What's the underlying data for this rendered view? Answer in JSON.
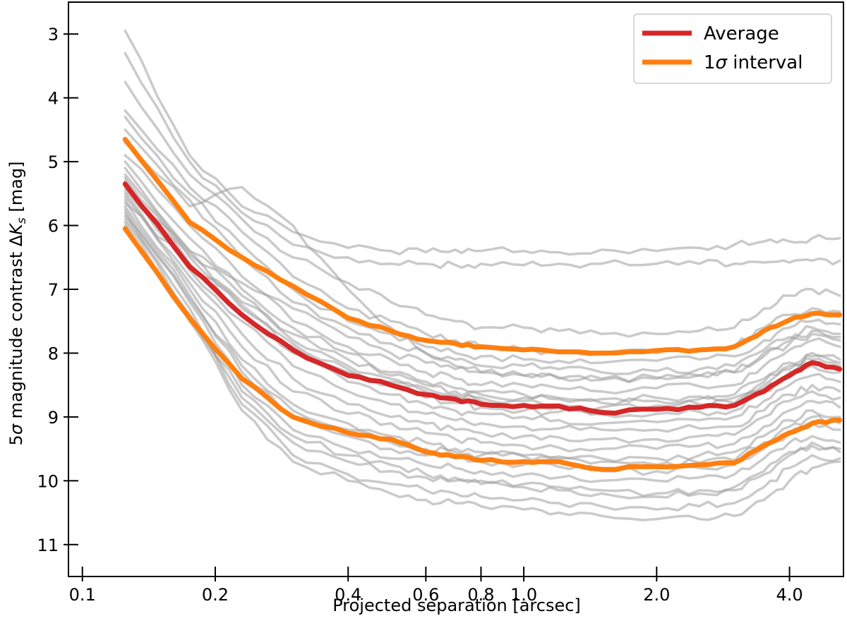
{
  "chart_data": {
    "type": "line",
    "xscale": "log",
    "xlim": [
      0.093,
      5.3
    ],
    "ylim": [
      11.5,
      2.5
    ],
    "y_inverted": true,
    "xlabel": "Projected separation [arcsec]",
    "ylabel_parts": [
      "5",
      "σ",
      " magnitude contrast Δ",
      "K",
      "s",
      " [mag]"
    ],
    "xticks": [
      0.1,
      0.2,
      0.4,
      0.6,
      0.8,
      1.0,
      2.0,
      4.0
    ],
    "xtick_labels": [
      "0.1",
      "0.2",
      "0.4",
      "0.6",
      "0.8",
      "1.0",
      "2.0",
      "4.0"
    ],
    "yticks": [
      3,
      4,
      5,
      6,
      7,
      8,
      9,
      10,
      11
    ],
    "ytick_labels": [
      "3",
      "4",
      "5",
      "6",
      "7",
      "8",
      "9",
      "10",
      "11"
    ],
    "legend": {
      "placement": "top-right",
      "entries": [
        {
          "label": "Average",
          "color": "#d62728"
        },
        {
          "label_parts": [
            "1",
            "σ",
            " interval"
          ],
          "color": "#ff7f0e"
        }
      ]
    },
    "colors": {
      "individual": "#9e9e9e",
      "average": "#d62728",
      "interval": "#ff7f0e"
    },
    "x_grid": [
      0.125,
      0.175,
      0.23,
      0.3,
      0.4,
      0.5,
      0.6,
      0.7,
      0.8,
      1.0,
      1.2,
      1.5,
      2.0,
      2.5,
      3.0,
      3.5,
      4.0,
      4.5,
      5.2
    ],
    "series": [
      {
        "name": "Average",
        "role": "average",
        "values": [
          5.35,
          6.65,
          7.4,
          7.95,
          8.35,
          8.5,
          8.65,
          8.72,
          8.8,
          8.82,
          8.83,
          8.93,
          8.88,
          8.85,
          8.82,
          8.6,
          8.35,
          8.15,
          8.25
        ]
      },
      {
        "name": "1σ upper",
        "role": "interval",
        "values": [
          4.65,
          5.95,
          6.5,
          6.95,
          7.45,
          7.65,
          7.8,
          7.85,
          7.9,
          7.95,
          7.98,
          8.0,
          7.96,
          7.95,
          7.9,
          7.65,
          7.48,
          7.38,
          7.4
        ]
      },
      {
        "name": "1σ lower",
        "role": "interval",
        "values": [
          6.05,
          7.45,
          8.4,
          9.0,
          9.25,
          9.35,
          9.55,
          9.62,
          9.68,
          9.7,
          9.7,
          9.82,
          9.78,
          9.75,
          9.72,
          9.45,
          9.25,
          9.1,
          9.05
        ]
      },
      {
        "name": "star-01",
        "role": "individual",
        "values": [
          2.95,
          4.9,
          5.7,
          6.1,
          6.35,
          6.4,
          6.42,
          6.38,
          6.4,
          6.4,
          6.42,
          6.38,
          6.4,
          6.35,
          6.3,
          6.25,
          6.25,
          6.2,
          6.2
        ]
      },
      {
        "name": "star-02",
        "role": "individual",
        "values": [
          3.3,
          5.0,
          5.8,
          6.3,
          6.5,
          6.6,
          6.6,
          6.62,
          6.6,
          6.62,
          6.6,
          6.6,
          6.6,
          6.6,
          6.6,
          6.58,
          6.58,
          6.55,
          6.55
        ]
      },
      {
        "name": "star-03",
        "role": "individual",
        "values": [
          3.75,
          5.2,
          5.9,
          6.5,
          6.9,
          7.2,
          7.4,
          7.5,
          7.6,
          7.6,
          7.65,
          7.7,
          7.7,
          7.65,
          7.6,
          7.3,
          7.1,
          7.0,
          7.1
        ]
      },
      {
        "name": "star-04",
        "role": "individual",
        "values": [
          4.2,
          5.4,
          6.1,
          6.8,
          7.3,
          7.5,
          7.7,
          7.8,
          7.9,
          7.95,
          7.98,
          8.0,
          8.0,
          7.95,
          7.9,
          7.6,
          7.4,
          7.3,
          7.35
        ]
      },
      {
        "name": "star-05",
        "role": "individual",
        "values": [
          4.5,
          5.6,
          6.5,
          7.2,
          7.6,
          7.85,
          8.0,
          8.1,
          8.2,
          8.2,
          8.25,
          8.3,
          8.28,
          8.25,
          8.2,
          7.95,
          7.75,
          7.6,
          7.7
        ]
      },
      {
        "name": "star-06",
        "role": "individual",
        "values": [
          4.7,
          5.7,
          5.4,
          6.0,
          7.0,
          7.6,
          8.0,
          8.2,
          8.3,
          8.35,
          8.4,
          8.42,
          8.4,
          8.35,
          8.3,
          8.0,
          7.8,
          7.65,
          7.75
        ]
      },
      {
        "name": "star-07",
        "role": "individual",
        "values": [
          4.9,
          6.0,
          6.8,
          7.5,
          7.9,
          8.1,
          8.3,
          8.4,
          8.5,
          8.5,
          8.55,
          8.6,
          8.55,
          8.52,
          8.5,
          8.2,
          7.95,
          7.8,
          7.9
        ]
      },
      {
        "name": "star-08",
        "role": "individual",
        "values": [
          5.0,
          6.2,
          7.0,
          7.6,
          8.0,
          8.3,
          8.45,
          8.55,
          8.6,
          8.65,
          8.7,
          8.72,
          8.7,
          8.68,
          8.65,
          8.4,
          8.15,
          8.0,
          8.1
        ]
      },
      {
        "name": "star-09",
        "role": "individual",
        "values": [
          5.1,
          6.4,
          7.1,
          7.8,
          8.2,
          8.4,
          8.55,
          8.65,
          8.7,
          8.75,
          8.8,
          8.85,
          8.82,
          8.8,
          8.78,
          8.5,
          8.25,
          8.1,
          8.2
        ]
      },
      {
        "name": "star-10",
        "role": "individual",
        "values": [
          5.2,
          6.5,
          7.3,
          7.9,
          8.3,
          8.5,
          8.7,
          8.78,
          8.85,
          8.9,
          8.92,
          8.95,
          8.95,
          8.92,
          8.9,
          8.6,
          8.35,
          8.2,
          8.3
        ]
      },
      {
        "name": "star-11",
        "role": "individual",
        "values": [
          5.3,
          6.6,
          7.4,
          8.0,
          8.45,
          8.65,
          8.8,
          8.9,
          8.95,
          9.0,
          9.05,
          9.1,
          9.08,
          9.05,
          9.0,
          8.75,
          8.5,
          8.35,
          8.45
        ]
      },
      {
        "name": "star-12",
        "role": "individual",
        "values": [
          5.4,
          6.7,
          7.5,
          8.2,
          8.6,
          8.8,
          8.95,
          9.05,
          9.1,
          9.15,
          9.18,
          9.2,
          9.2,
          9.18,
          9.15,
          8.9,
          8.65,
          8.5,
          8.6
        ]
      },
      {
        "name": "star-13",
        "role": "individual",
        "values": [
          5.5,
          6.8,
          7.7,
          8.4,
          8.8,
          9.0,
          9.1,
          9.2,
          9.25,
          9.3,
          9.32,
          9.35,
          9.35,
          9.3,
          9.28,
          9.0,
          8.75,
          8.6,
          8.7
        ]
      },
      {
        "name": "star-14",
        "role": "individual",
        "values": [
          5.55,
          6.9,
          7.9,
          8.6,
          8.95,
          9.1,
          9.25,
          9.35,
          9.4,
          9.45,
          9.48,
          9.5,
          9.5,
          9.45,
          9.42,
          9.15,
          8.9,
          8.75,
          8.85
        ]
      },
      {
        "name": "star-15",
        "role": "individual",
        "values": [
          5.6,
          7.0,
          8.1,
          8.8,
          9.1,
          9.3,
          9.4,
          9.5,
          9.55,
          9.6,
          9.62,
          9.65,
          9.65,
          9.6,
          9.55,
          9.3,
          9.05,
          8.9,
          9.0
        ]
      },
      {
        "name": "star-16",
        "role": "individual",
        "values": [
          5.7,
          7.1,
          8.3,
          9.0,
          9.3,
          9.5,
          9.6,
          9.65,
          9.7,
          9.75,
          9.78,
          9.85,
          9.85,
          9.8,
          9.75,
          9.5,
          9.25,
          9.1,
          9.2
        ]
      },
      {
        "name": "star-17",
        "role": "individual",
        "values": [
          5.75,
          7.2,
          8.5,
          9.2,
          9.5,
          9.65,
          9.75,
          9.8,
          9.85,
          9.9,
          9.95,
          10.0,
          10.0,
          9.95,
          9.9,
          9.65,
          9.4,
          9.3,
          9.4
        ]
      },
      {
        "name": "star-18",
        "role": "individual",
        "values": [
          5.8,
          7.3,
          8.7,
          9.4,
          9.7,
          9.85,
          9.95,
          10.0,
          10.05,
          10.1,
          10.15,
          10.2,
          10.25,
          10.2,
          10.15,
          9.9,
          9.6,
          9.45,
          9.55
        ]
      },
      {
        "name": "star-19",
        "role": "individual",
        "values": [
          5.9,
          7.4,
          8.8,
          9.6,
          9.9,
          10.05,
          10.15,
          10.2,
          10.25,
          10.3,
          10.35,
          10.4,
          10.45,
          10.4,
          10.35,
          10.1,
          9.8,
          9.6,
          9.65
        ]
      },
      {
        "name": "star-20",
        "role": "individual",
        "values": [
          6.0,
          7.5,
          8.9,
          9.7,
          10.0,
          10.2,
          10.3,
          10.35,
          10.4,
          10.45,
          10.5,
          10.55,
          10.6,
          10.6,
          10.55,
          10.3,
          10.0,
          9.8,
          9.7
        ]
      },
      {
        "name": "star-21",
        "role": "individual",
        "values": [
          5.45,
          6.4,
          6.9,
          7.3,
          7.75,
          8.0,
          8.15,
          8.25,
          8.3,
          8.35,
          8.38,
          8.4,
          8.38,
          8.35,
          8.3,
          8.05,
          7.85,
          7.7,
          7.8
        ]
      },
      {
        "name": "star-22",
        "role": "individual",
        "values": [
          5.65,
          6.6,
          7.2,
          7.7,
          8.1,
          8.35,
          8.5,
          8.6,
          8.65,
          8.7,
          8.72,
          8.78,
          8.75,
          8.72,
          8.7,
          8.45,
          8.2,
          8.05,
          8.15
        ]
      },
      {
        "name": "star-23",
        "role": "individual",
        "values": [
          4.3,
          5.5,
          6.3,
          7.0,
          7.5,
          7.7,
          7.9,
          8.0,
          8.05,
          8.1,
          8.12,
          8.15,
          8.12,
          8.1,
          8.05,
          7.8,
          7.6,
          7.5,
          7.55
        ]
      },
      {
        "name": "star-24",
        "role": "individual",
        "values": [
          5.85,
          7.15,
          8.2,
          8.9,
          9.2,
          9.4,
          9.5,
          9.55,
          9.6,
          9.62,
          9.65,
          9.7,
          9.75,
          9.72,
          9.68,
          9.4,
          9.15,
          9.0,
          9.1
        ]
      },
      {
        "name": "star-25",
        "role": "individual",
        "values": [
          5.25,
          6.45,
          7.25,
          7.85,
          8.25,
          8.45,
          8.6,
          8.68,
          8.75,
          8.8,
          8.85,
          8.9,
          8.88,
          8.85,
          8.82,
          8.55,
          8.3,
          8.15,
          8.25
        ]
      },
      {
        "name": "star-26",
        "role": "individual",
        "values": [
          5.95,
          7.45,
          8.6,
          9.3,
          9.6,
          9.75,
          9.9,
          9.95,
          10.0,
          10.05,
          10.1,
          10.15,
          10.2,
          10.15,
          10.1,
          9.85,
          9.55,
          9.4,
          9.5
        ]
      }
    ]
  }
}
